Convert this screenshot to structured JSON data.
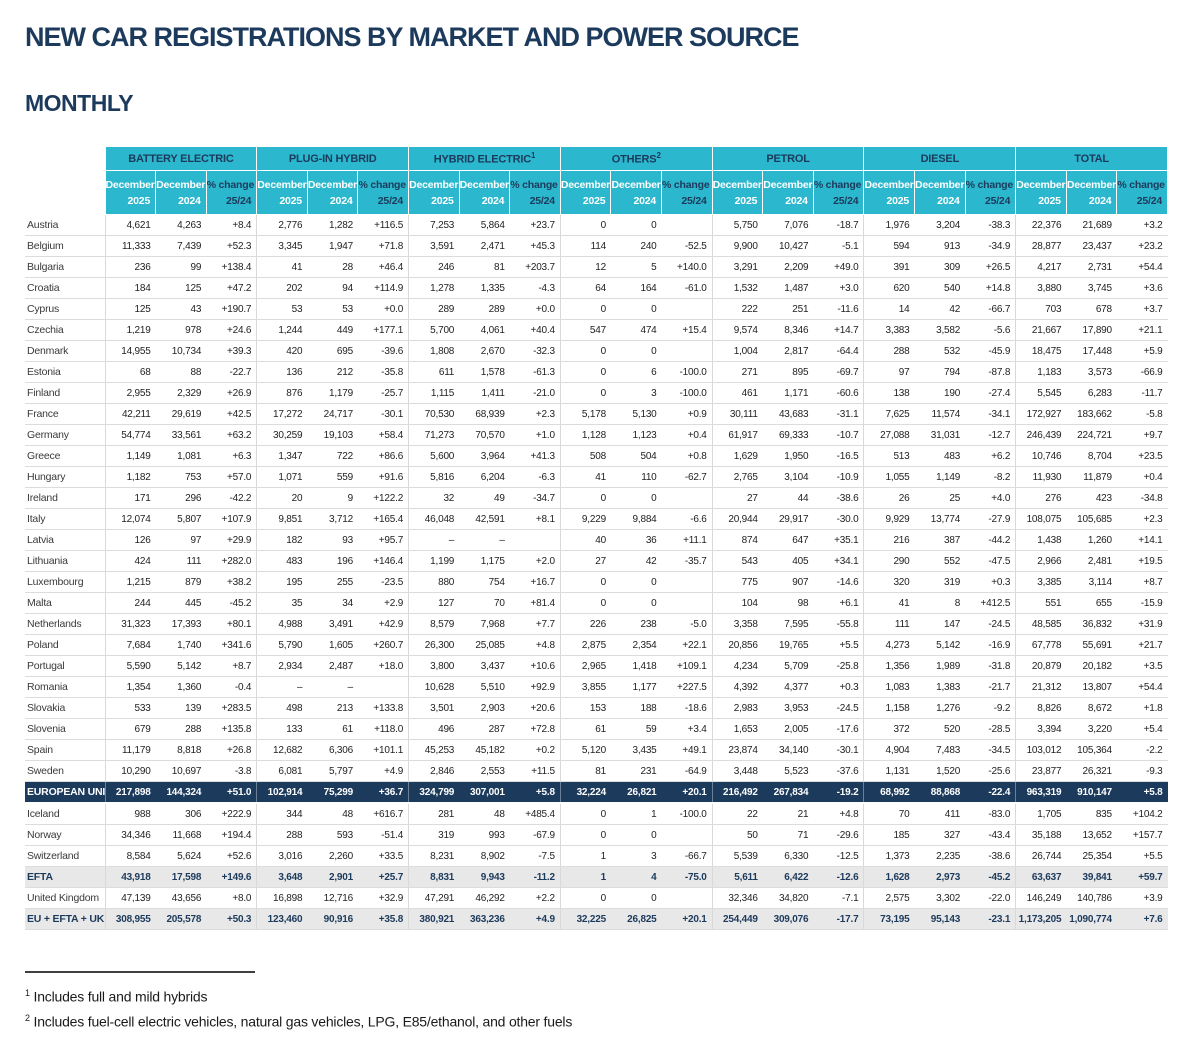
{
  "page": {
    "title": "NEW CAR REGISTRATIONS BY MARKET AND POWER SOURCE",
    "subtitle": "MONTHLY"
  },
  "colors": {
    "header_cyan": "#2bb7cd",
    "navy": "#1c3a5c",
    "band_gray": "#e8e8e8"
  },
  "chart_data": {
    "type": "table",
    "title": "New car registrations by market and power source, monthly",
    "column_groups": [
      "BATTERY ELECTRIC",
      "PLUG-IN HYBRID",
      "HYBRID ELECTRIC",
      "OTHERS",
      "PETROL",
      "DIESEL",
      "TOTAL"
    ],
    "columns_per_group": [
      "December 2025",
      "December 2024",
      "% change 25/24"
    ]
  },
  "table": {
    "groups": [
      {
        "label": "BATTERY ELECTRIC",
        "sup": ""
      },
      {
        "label": "PLUG-IN HYBRID",
        "sup": ""
      },
      {
        "label": "HYBRID ELECTRIC",
        "sup": "1"
      },
      {
        "label": "OTHERS",
        "sup": "2"
      },
      {
        "label": "PETROL",
        "sup": ""
      },
      {
        "label": "DIESEL",
        "sup": ""
      },
      {
        "label": "TOTAL",
        "sup": ""
      }
    ],
    "sub_columns": [
      {
        "line1": "December",
        "line2": "2025",
        "emphasis": "light"
      },
      {
        "line1": "December",
        "line2": "2024",
        "emphasis": "light"
      },
      {
        "line1": "% change",
        "line2": "25/24",
        "emphasis": "dark"
      }
    ],
    "rows": [
      {
        "name": "Austria",
        "type": "country",
        "values": [
          "4,621",
          "4,263",
          "+8.4",
          "2,776",
          "1,282",
          "+116.5",
          "7,253",
          "5,864",
          "+23.7",
          "0",
          "0",
          "",
          "5,750",
          "7,076",
          "-18.7",
          "1,976",
          "3,204",
          "-38.3",
          "22,376",
          "21,689",
          "+3.2"
        ]
      },
      {
        "name": "Belgium",
        "type": "country",
        "values": [
          "11,333",
          "7,439",
          "+52.3",
          "3,345",
          "1,947",
          "+71.8",
          "3,591",
          "2,471",
          "+45.3",
          "114",
          "240",
          "-52.5",
          "9,900",
          "10,427",
          "-5.1",
          "594",
          "913",
          "-34.9",
          "28,877",
          "23,437",
          "+23.2"
        ]
      },
      {
        "name": "Bulgaria",
        "type": "country",
        "values": [
          "236",
          "99",
          "+138.4",
          "41",
          "28",
          "+46.4",
          "246",
          "81",
          "+203.7",
          "12",
          "5",
          "+140.0",
          "3,291",
          "2,209",
          "+49.0",
          "391",
          "309",
          "+26.5",
          "4,217",
          "2,731",
          "+54.4"
        ]
      },
      {
        "name": "Croatia",
        "type": "country",
        "values": [
          "184",
          "125",
          "+47.2",
          "202",
          "94",
          "+114.9",
          "1,278",
          "1,335",
          "-4.3",
          "64",
          "164",
          "-61.0",
          "1,532",
          "1,487",
          "+3.0",
          "620",
          "540",
          "+14.8",
          "3,880",
          "3,745",
          "+3.6"
        ]
      },
      {
        "name": "Cyprus",
        "type": "country",
        "values": [
          "125",
          "43",
          "+190.7",
          "53",
          "53",
          "+0.0",
          "289",
          "289",
          "+0.0",
          "0",
          "0",
          "",
          "222",
          "251",
          "-11.6",
          "14",
          "42",
          "-66.7",
          "703",
          "678",
          "+3.7"
        ]
      },
      {
        "name": "Czechia",
        "type": "country",
        "values": [
          "1,219",
          "978",
          "+24.6",
          "1,244",
          "449",
          "+177.1",
          "5,700",
          "4,061",
          "+40.4",
          "547",
          "474",
          "+15.4",
          "9,574",
          "8,346",
          "+14.7",
          "3,383",
          "3,582",
          "-5.6",
          "21,667",
          "17,890",
          "+21.1"
        ]
      },
      {
        "name": "Denmark",
        "type": "country",
        "values": [
          "14,955",
          "10,734",
          "+39.3",
          "420",
          "695",
          "-39.6",
          "1,808",
          "2,670",
          "-32.3",
          "0",
          "0",
          "",
          "1,004",
          "2,817",
          "-64.4",
          "288",
          "532",
          "-45.9",
          "18,475",
          "17,448",
          "+5.9"
        ]
      },
      {
        "name": "Estonia",
        "type": "country",
        "values": [
          "68",
          "88",
          "-22.7",
          "136",
          "212",
          "-35.8",
          "611",
          "1,578",
          "-61.3",
          "0",
          "6",
          "-100.0",
          "271",
          "895",
          "-69.7",
          "97",
          "794",
          "-87.8",
          "1,183",
          "3,573",
          "-66.9"
        ]
      },
      {
        "name": "Finland",
        "type": "country",
        "values": [
          "2,955",
          "2,329",
          "+26.9",
          "876",
          "1,179",
          "-25.7",
          "1,115",
          "1,411",
          "-21.0",
          "0",
          "3",
          "-100.0",
          "461",
          "1,171",
          "-60.6",
          "138",
          "190",
          "-27.4",
          "5,545",
          "6,283",
          "-11.7"
        ]
      },
      {
        "name": "France",
        "type": "country",
        "values": [
          "42,211",
          "29,619",
          "+42.5",
          "17,272",
          "24,717",
          "-30.1",
          "70,530",
          "68,939",
          "+2.3",
          "5,178",
          "5,130",
          "+0.9",
          "30,111",
          "43,683",
          "-31.1",
          "7,625",
          "11,574",
          "-34.1",
          "172,927",
          "183,662",
          "-5.8"
        ]
      },
      {
        "name": "Germany",
        "type": "country",
        "values": [
          "54,774",
          "33,561",
          "+63.2",
          "30,259",
          "19,103",
          "+58.4",
          "71,273",
          "70,570",
          "+1.0",
          "1,128",
          "1,123",
          "+0.4",
          "61,917",
          "69,333",
          "-10.7",
          "27,088",
          "31,031",
          "-12.7",
          "246,439",
          "224,721",
          "+9.7"
        ]
      },
      {
        "name": "Greece",
        "type": "country",
        "values": [
          "1,149",
          "1,081",
          "+6.3",
          "1,347",
          "722",
          "+86.6",
          "5,600",
          "3,964",
          "+41.3",
          "508",
          "504",
          "+0.8",
          "1,629",
          "1,950",
          "-16.5",
          "513",
          "483",
          "+6.2",
          "10,746",
          "8,704",
          "+23.5"
        ]
      },
      {
        "name": "Hungary",
        "type": "country",
        "values": [
          "1,182",
          "753",
          "+57.0",
          "1,071",
          "559",
          "+91.6",
          "5,816",
          "6,204",
          "-6.3",
          "41",
          "110",
          "-62.7",
          "2,765",
          "3,104",
          "-10.9",
          "1,055",
          "1,149",
          "-8.2",
          "11,930",
          "11,879",
          "+0.4"
        ]
      },
      {
        "name": "Ireland",
        "type": "country",
        "values": [
          "171",
          "296",
          "-42.2",
          "20",
          "9",
          "+122.2",
          "32",
          "49",
          "-34.7",
          "0",
          "0",
          "",
          "27",
          "44",
          "-38.6",
          "26",
          "25",
          "+4.0",
          "276",
          "423",
          "-34.8"
        ]
      },
      {
        "name": "Italy",
        "type": "country",
        "values": [
          "12,074",
          "5,807",
          "+107.9",
          "9,851",
          "3,712",
          "+165.4",
          "46,048",
          "42,591",
          "+8.1",
          "9,229",
          "9,884",
          "-6.6",
          "20,944",
          "29,917",
          "-30.0",
          "9,929",
          "13,774",
          "-27.9",
          "108,075",
          "105,685",
          "+2.3"
        ]
      },
      {
        "name": "Latvia",
        "type": "country",
        "values": [
          "126",
          "97",
          "+29.9",
          "182",
          "93",
          "+95.7",
          "–",
          "–",
          "",
          "40",
          "36",
          "+11.1",
          "874",
          "647",
          "+35.1",
          "216",
          "387",
          "-44.2",
          "1,438",
          "1,260",
          "+14.1"
        ]
      },
      {
        "name": "Lithuania",
        "type": "country",
        "values": [
          "424",
          "111",
          "+282.0",
          "483",
          "196",
          "+146.4",
          "1,199",
          "1,175",
          "+2.0",
          "27",
          "42",
          "-35.7",
          "543",
          "405",
          "+34.1",
          "290",
          "552",
          "-47.5",
          "2,966",
          "2,481",
          "+19.5"
        ]
      },
      {
        "name": "Luxembourg",
        "type": "country",
        "values": [
          "1,215",
          "879",
          "+38.2",
          "195",
          "255",
          "-23.5",
          "880",
          "754",
          "+16.7",
          "0",
          "0",
          "",
          "775",
          "907",
          "-14.6",
          "320",
          "319",
          "+0.3",
          "3,385",
          "3,114",
          "+8.7"
        ]
      },
      {
        "name": "Malta",
        "type": "country",
        "values": [
          "244",
          "445",
          "-45.2",
          "35",
          "34",
          "+2.9",
          "127",
          "70",
          "+81.4",
          "0",
          "0",
          "",
          "104",
          "98",
          "+6.1",
          "41",
          "8",
          "+412.5",
          "551",
          "655",
          "-15.9"
        ]
      },
      {
        "name": "Netherlands",
        "type": "country",
        "values": [
          "31,323",
          "17,393",
          "+80.1",
          "4,988",
          "3,491",
          "+42.9",
          "8,579",
          "7,968",
          "+7.7",
          "226",
          "238",
          "-5.0",
          "3,358",
          "7,595",
          "-55.8",
          "111",
          "147",
          "-24.5",
          "48,585",
          "36,832",
          "+31.9"
        ]
      },
      {
        "name": "Poland",
        "type": "country",
        "values": [
          "7,684",
          "1,740",
          "+341.6",
          "5,790",
          "1,605",
          "+260.7",
          "26,300",
          "25,085",
          "+4.8",
          "2,875",
          "2,354",
          "+22.1",
          "20,856",
          "19,765",
          "+5.5",
          "4,273",
          "5,142",
          "-16.9",
          "67,778",
          "55,691",
          "+21.7"
        ]
      },
      {
        "name": "Portugal",
        "type": "country",
        "values": [
          "5,590",
          "5,142",
          "+8.7",
          "2,934",
          "2,487",
          "+18.0",
          "3,800",
          "3,437",
          "+10.6",
          "2,965",
          "1,418",
          "+109.1",
          "4,234",
          "5,709",
          "-25.8",
          "1,356",
          "1,989",
          "-31.8",
          "20,879",
          "20,182",
          "+3.5"
        ]
      },
      {
        "name": "Romania",
        "type": "country",
        "values": [
          "1,354",
          "1,360",
          "-0.4",
          "–",
          "–",
          "",
          "10,628",
          "5,510",
          "+92.9",
          "3,855",
          "1,177",
          "+227.5",
          "4,392",
          "4,377",
          "+0.3",
          "1,083",
          "1,383",
          "-21.7",
          "21,312",
          "13,807",
          "+54.4"
        ]
      },
      {
        "name": "Slovakia",
        "type": "country",
        "values": [
          "533",
          "139",
          "+283.5",
          "498",
          "213",
          "+133.8",
          "3,501",
          "2,903",
          "+20.6",
          "153",
          "188",
          "-18.6",
          "2,983",
          "3,953",
          "-24.5",
          "1,158",
          "1,276",
          "-9.2",
          "8,826",
          "8,672",
          "+1.8"
        ]
      },
      {
        "name": "Slovenia",
        "type": "country",
        "values": [
          "679",
          "288",
          "+135.8",
          "133",
          "61",
          "+118.0",
          "496",
          "287",
          "+72.8",
          "61",
          "59",
          "+3.4",
          "1,653",
          "2,005",
          "-17.6",
          "372",
          "520",
          "-28.5",
          "3,394",
          "3,220",
          "+5.4"
        ]
      },
      {
        "name": "Spain",
        "type": "country",
        "values": [
          "11,179",
          "8,818",
          "+26.8",
          "12,682",
          "6,306",
          "+101.1",
          "45,253",
          "45,182",
          "+0.2",
          "5,120",
          "3,435",
          "+49.1",
          "23,874",
          "34,140",
          "-30.1",
          "4,904",
          "7,483",
          "-34.5",
          "103,012",
          "105,364",
          "-2.2"
        ]
      },
      {
        "name": "Sweden",
        "type": "country",
        "values": [
          "10,290",
          "10,697",
          "-3.8",
          "6,081",
          "5,797",
          "+4.9",
          "2,846",
          "2,553",
          "+11.5",
          "81",
          "231",
          "-64.9",
          "3,448",
          "5,523",
          "-37.6",
          "1,131",
          "1,520",
          "-25.6",
          "23,877",
          "26,321",
          "-9.3"
        ]
      },
      {
        "name": "EUROPEAN UNION",
        "type": "eu",
        "values": [
          "217,898",
          "144,324",
          "+51.0",
          "102,914",
          "75,299",
          "+36.7",
          "324,799",
          "307,001",
          "+5.8",
          "32,224",
          "26,821",
          "+20.1",
          "216,492",
          "267,834",
          "-19.2",
          "68,992",
          "88,868",
          "-22.4",
          "963,319",
          "910,147",
          "+5.8"
        ]
      },
      {
        "name": "Iceland",
        "type": "country",
        "values": [
          "988",
          "306",
          "+222.9",
          "344",
          "48",
          "+616.7",
          "281",
          "48",
          "+485.4",
          "0",
          "1",
          "-100.0",
          "22",
          "21",
          "+4.8",
          "70",
          "411",
          "-83.0",
          "1,705",
          "835",
          "+104.2"
        ]
      },
      {
        "name": "Norway",
        "type": "country",
        "values": [
          "34,346",
          "11,668",
          "+194.4",
          "288",
          "593",
          "-51.4",
          "319",
          "993",
          "-67.9",
          "0",
          "0",
          "",
          "50",
          "71",
          "-29.6",
          "185",
          "327",
          "-43.4",
          "35,188",
          "13,652",
          "+157.7"
        ]
      },
      {
        "name": "Switzerland",
        "type": "country",
        "values": [
          "8,584",
          "5,624",
          "+52.6",
          "3,016",
          "2,260",
          "+33.5",
          "8,231",
          "8,902",
          "-7.5",
          "1",
          "3",
          "-66.7",
          "5,539",
          "6,330",
          "-12.5",
          "1,373",
          "2,235",
          "-38.6",
          "26,744",
          "25,354",
          "+5.5"
        ]
      },
      {
        "name": "EFTA",
        "type": "band",
        "values": [
          "43,918",
          "17,598",
          "+149.6",
          "3,648",
          "2,901",
          "+25.7",
          "8,831",
          "9,943",
          "-11.2",
          "1",
          "4",
          "-75.0",
          "5,611",
          "6,422",
          "-12.6",
          "1,628",
          "2,973",
          "-45.2",
          "63,637",
          "39,841",
          "+59.7"
        ]
      },
      {
        "name": "United Kingdom",
        "type": "country",
        "values": [
          "47,139",
          "43,656",
          "+8.0",
          "16,898",
          "12,716",
          "+32.9",
          "47,291",
          "46,292",
          "+2.2",
          "0",
          "0",
          "",
          "32,346",
          "34,820",
          "-7.1",
          "2,575",
          "3,302",
          "-22.0",
          "146,249",
          "140,786",
          "+3.9"
        ]
      },
      {
        "name": "EU + EFTA + UK",
        "type": "band",
        "values": [
          "308,955",
          "205,578",
          "+50.3",
          "123,460",
          "90,916",
          "+35.8",
          "380,921",
          "363,236",
          "+4.9",
          "32,225",
          "26,825",
          "+20.1",
          "254,449",
          "309,076",
          "-17.7",
          "73,195",
          "95,143",
          "-23.1",
          "1,173,205",
          "1,090,774",
          "+7.6"
        ]
      }
    ]
  },
  "footnotes": [
    {
      "sup": "1",
      "text": "Includes full and mild hybrids"
    },
    {
      "sup": "2",
      "text": "Includes fuel-cell electric vehicles, natural gas vehicles, LPG, E85/ethanol, and other fuels"
    }
  ]
}
